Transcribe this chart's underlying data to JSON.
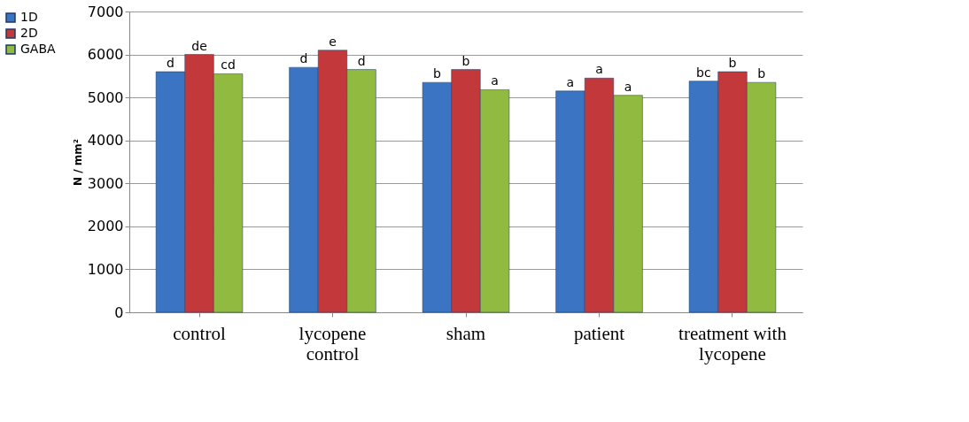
{
  "chart_data": {
    "type": "bar",
    "ylabel": "N / mm²",
    "categories": [
      "control",
      "lycopene control",
      "sham",
      "patient",
      "treatment with lycopene"
    ],
    "series": [
      {
        "name": "1D",
        "color": "#3a74c2",
        "values": [
          5600,
          5700,
          5350,
          5150,
          5380
        ],
        "value_labels": [
          "d",
          "d",
          "b",
          "a",
          "bc"
        ]
      },
      {
        "name": "2D",
        "color": "#c3393b",
        "values": [
          6000,
          6100,
          5650,
          5450,
          5600
        ],
        "value_labels": [
          "de",
          "e",
          "b",
          "a",
          "b"
        ]
      },
      {
        "name": "GABA",
        "color": "#90ba40",
        "values": [
          5550,
          5650,
          5180,
          5050,
          5350
        ],
        "value_labels": [
          "cd",
          "d",
          "a",
          "a",
          "b"
        ]
      }
    ],
    "ylim": [
      0,
      7000
    ],
    "yticks": [
      0,
      1000,
      2000,
      3000,
      4000,
      5000,
      6000,
      7000
    ],
    "grid": "y",
    "legend": "left"
  }
}
